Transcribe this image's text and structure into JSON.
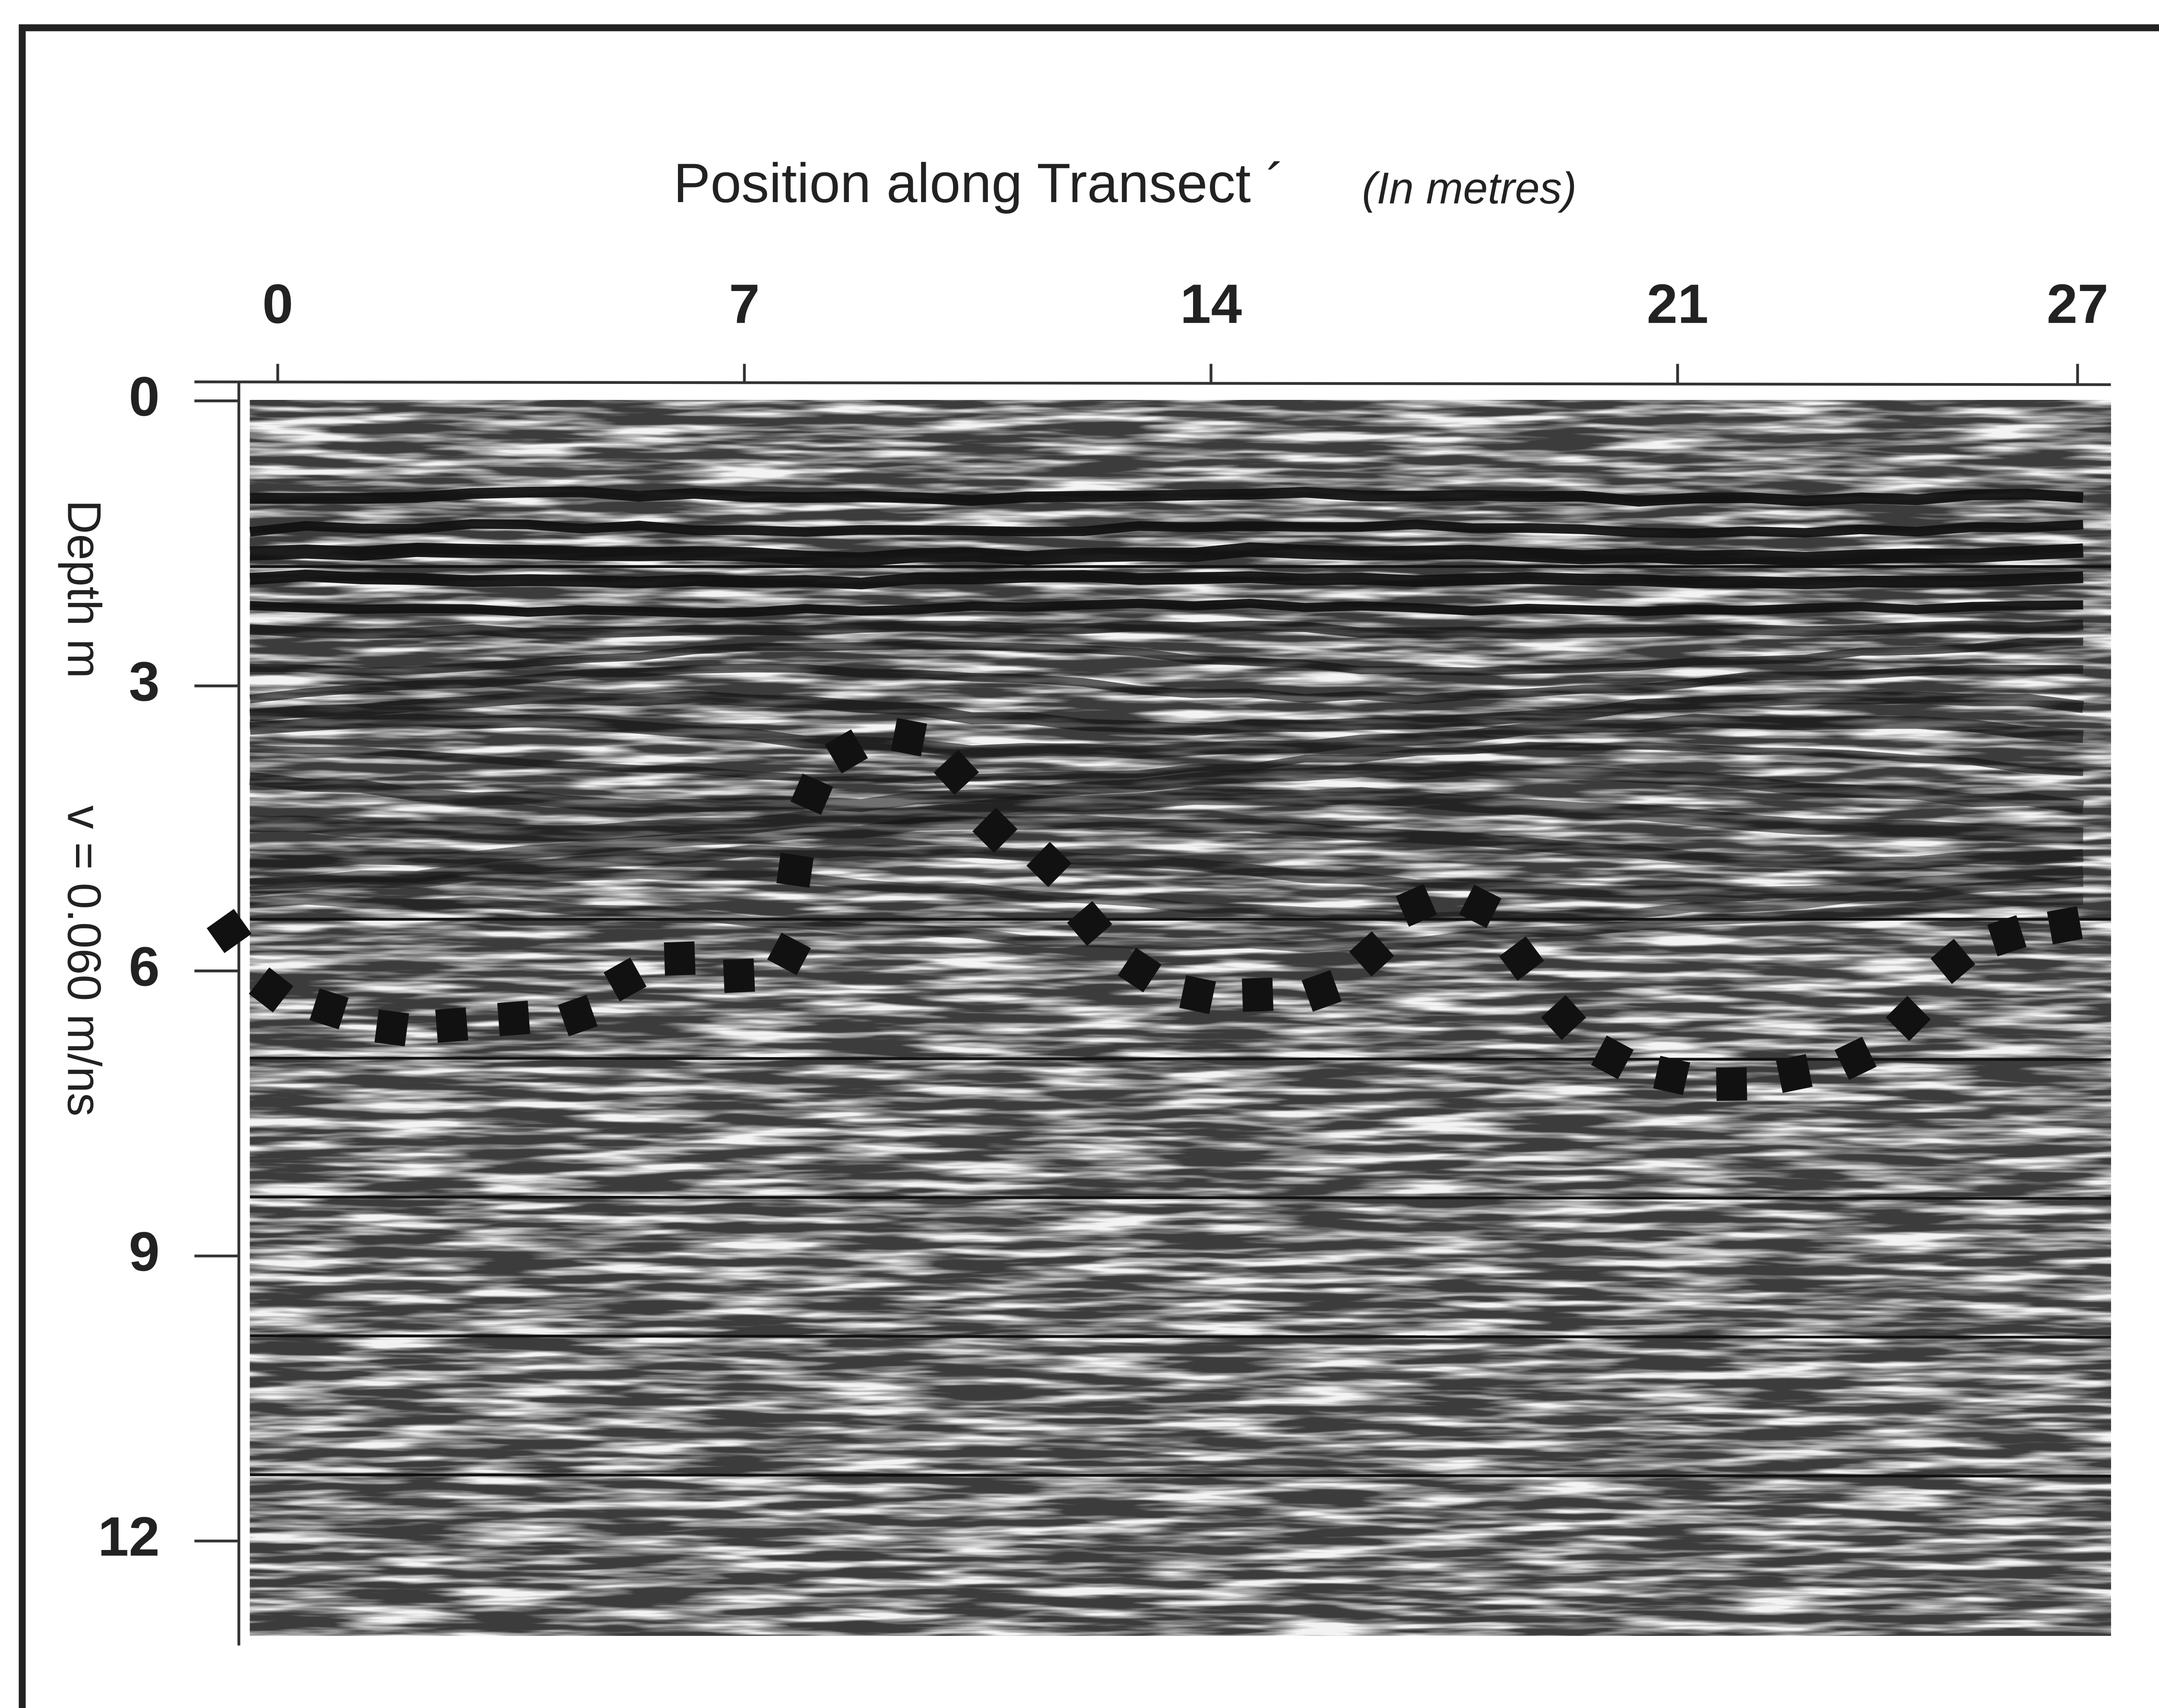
{
  "chart_data": {
    "type": "scatter",
    "x_label": "Position along Transect ´",
    "x_label_unit": "(In metres)",
    "y_label": "Depth m",
    "annotation": "v = 0.060 m/ns",
    "x": [
      -0.73,
      -0.1,
      0.77,
      1.71,
      2.61,
      3.54,
      4.5,
      5.21,
      6.03,
      6.92,
      7.67,
      7.76,
      8.01,
      8.53,
      9.47,
      10.18,
      10.76,
      11.57,
      12.18,
      12.93,
      13.8,
      14.7,
      15.66,
      16.41,
      17.08,
      18.04,
      18.66,
      19.29,
      20.02,
      20.91,
      21.81,
      22.75,
      23.67,
      24.46,
      25.13,
      25.94,
      26.81
    ],
    "values": [
      5.58,
      6.2,
      6.4,
      6.6,
      6.57,
      6.5,
      6.47,
      6.09,
      5.87,
      6.05,
      5.82,
      4.94,
      4.14,
      3.69,
      3.54,
      3.91,
      4.52,
      4.88,
      5.5,
      5.99,
      6.25,
      6.25,
      6.21,
      5.82,
      5.31,
      5.32,
      5.87,
      6.49,
      6.91,
      7.1,
      7.19,
      7.08,
      6.92,
      6.5,
      5.9,
      5.63,
      5.52
    ],
    "color": "#111111",
    "xlim": [
      -1.25,
      27.5
    ],
    "xticks": [
      0,
      7,
      14,
      21,
      27
    ],
    "ylim": [
      -0.2,
      13.1
    ],
    "yticks": [
      0,
      3,
      6,
      9,
      12
    ],
    "y_inverted": true
  }
}
